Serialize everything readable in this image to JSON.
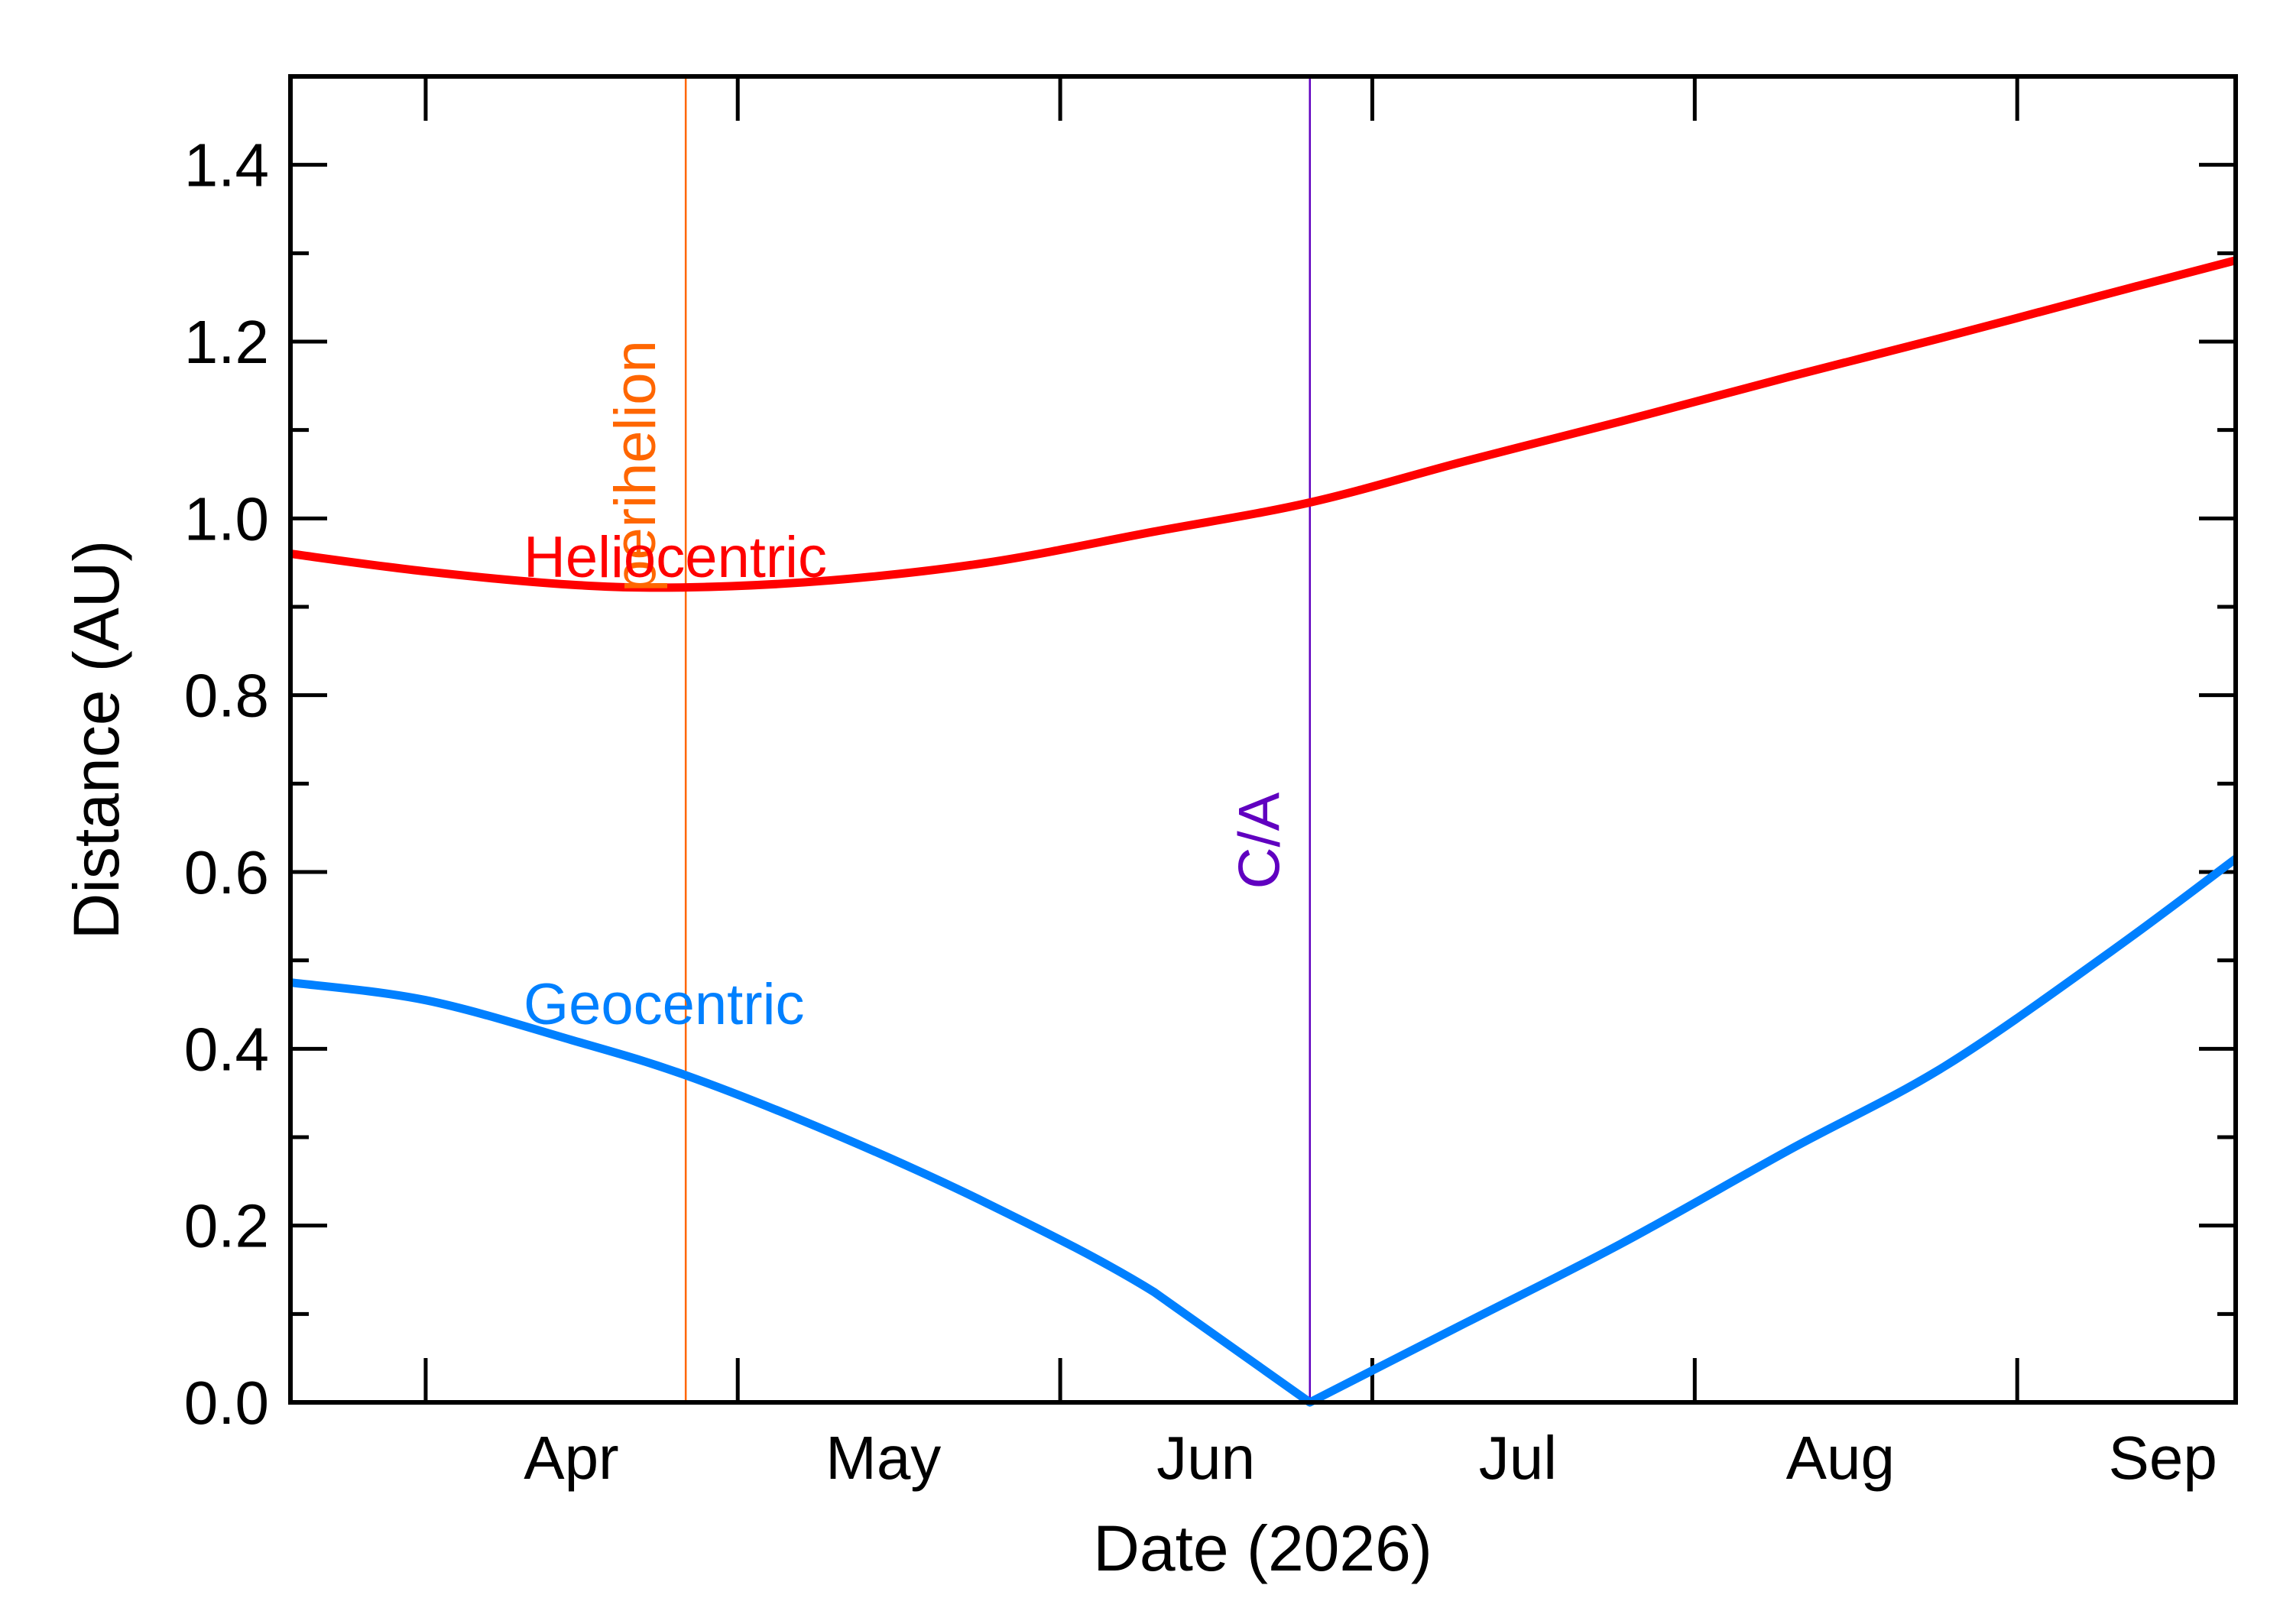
{
  "chart_data": {
    "type": "line",
    "xlabel": "Date (2026)",
    "ylabel": "Distance (AU)",
    "xlim": [
      "2026-03-19",
      "2026-09-22"
    ],
    "ylim": [
      0.0,
      1.5
    ],
    "x_tick_labels": [
      "Apr",
      "May",
      "Jun",
      "Jul",
      "Aug",
      "Sep"
    ],
    "y_tick_labels": [
      "0.0",
      "0.2",
      "0.4",
      "0.6",
      "0.8",
      "1.0",
      "1.2",
      "1.4"
    ],
    "series": [
      {
        "name": "Heliocentric",
        "color": "#ff0000",
        "x": [
          "2026-03-19",
          "2026-04-01",
          "2026-04-15",
          "2026-04-26",
          "2026-05-10",
          "2026-05-25",
          "2026-06-10",
          "2026-06-25",
          "2026-07-10",
          "2026-07-25",
          "2026-08-10",
          "2026-08-25",
          "2026-09-10",
          "2026-09-22"
        ],
        "values": [
          0.96,
          0.94,
          0.925,
          0.922,
          0.93,
          0.95,
          0.985,
          1.018,
          1.065,
          1.11,
          1.16,
          1.205,
          1.255,
          1.292
        ]
      },
      {
        "name": "Geocentric",
        "color": "#0080ff",
        "x": [
          "2026-03-19",
          "2026-04-01",
          "2026-04-15",
          "2026-04-26",
          "2026-05-10",
          "2026-05-25",
          "2026-06-10",
          "2026-06-25",
          "2026-07-10",
          "2026-07-25",
          "2026-08-10",
          "2026-08-25",
          "2026-09-10",
          "2026-09-22"
        ],
        "values": [
          0.475,
          0.455,
          0.41,
          0.37,
          0.305,
          0.225,
          0.125,
          0.0,
          0.09,
          0.18,
          0.285,
          0.38,
          0.51,
          0.615
        ]
      }
    ],
    "vertical_markers": [
      {
        "label": "perihelion",
        "date": "2026-04-26",
        "color": "#ff6600"
      },
      {
        "label": "C/A",
        "date": "2026-06-25",
        "color": "#6000c0"
      }
    ],
    "grid": false,
    "legend": "none"
  }
}
